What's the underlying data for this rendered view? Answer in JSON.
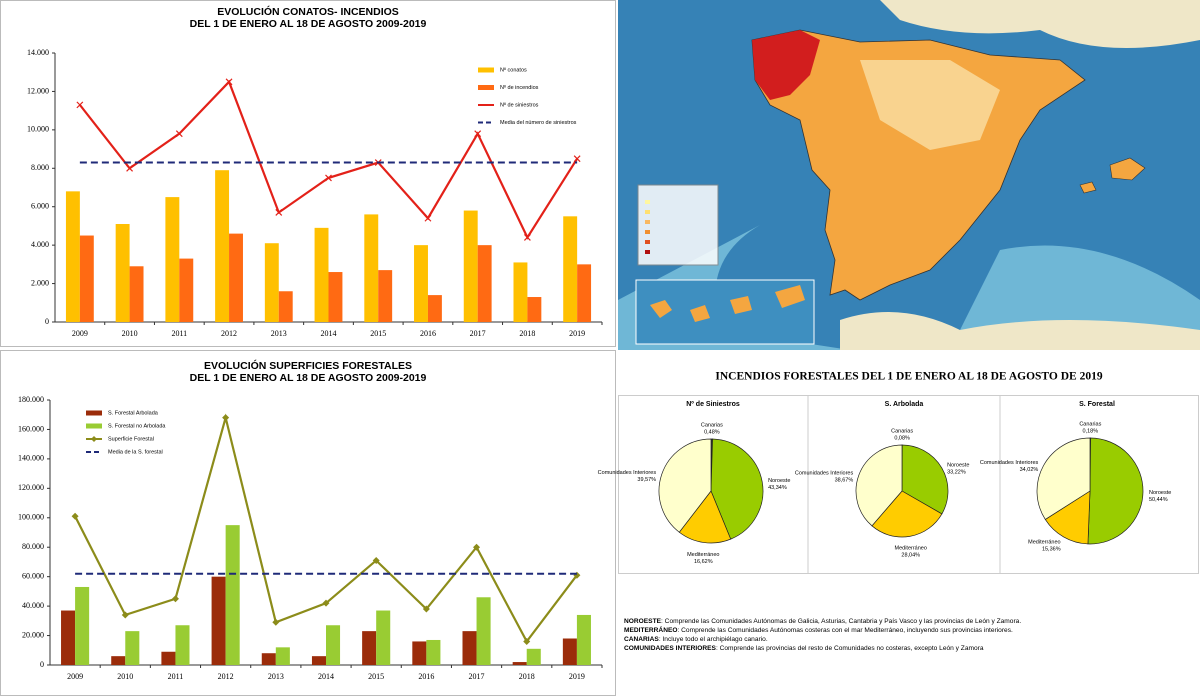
{
  "chart_data": [
    {
      "type": "combo",
      "title": "EVOLUCIÓN CONATOS- INCENDIOS",
      "subtitle": "DEL 1 DE ENERO AL 18 DE AGOSTO 2009-2019",
      "categories": [
        "2009",
        "2010",
        "2011",
        "2012",
        "2013",
        "2014",
        "2015",
        "2016",
        "2017",
        "2018",
        "2019"
      ],
      "series": [
        {
          "name": "Nº conatos",
          "kind": "bar",
          "color": "#FFC000",
          "values": [
            6800,
            5100,
            6500,
            7900,
            4100,
            4900,
            5600,
            4000,
            5800,
            3100,
            5500
          ]
        },
        {
          "name": "Nº de incendios",
          "kind": "bar",
          "color": "#FF6A13",
          "values": [
            4500,
            2900,
            3300,
            4600,
            1600,
            2600,
            2700,
            1400,
            4000,
            1300,
            3000
          ]
        },
        {
          "name": "Nº de siniestros",
          "kind": "line",
          "marker": "cross",
          "color": "#E32119",
          "values": [
            11300,
            8000,
            9800,
            12500,
            5700,
            7500,
            8300,
            5400,
            9800,
            4400,
            8500
          ]
        },
        {
          "name": "Media del número de siniestros",
          "kind": "line",
          "dash": true,
          "color": "#1F2A78",
          "values": [
            8300,
            8300,
            8300,
            8300,
            8300,
            8300,
            8300,
            8300,
            8300,
            8300,
            8300
          ]
        }
      ],
      "ylim": [
        0,
        14000
      ],
      "yticks": [
        0,
        {
          "value": 2000,
          "label": "2.000"
        },
        {
          "value": 4000,
          "label": "4.000"
        },
        {
          "value": 6000,
          "label": "6.000"
        },
        {
          "value": 8000,
          "label": "8.000"
        },
        {
          "value": 10000,
          "label": "10.000"
        },
        {
          "value": 12000,
          "label": "12.000"
        },
        {
          "value": 14000,
          "label": "14.000"
        }
      ],
      "grid": false,
      "legend": "upper right"
    },
    {
      "type": "combo",
      "title": "EVOLUCIÓN SUPERFICIES FORESTALES",
      "subtitle": "DEL 1 DE ENERO AL 18 DE AGOSTO 2009-2019",
      "categories": [
        "2009",
        "2010",
        "2011",
        "2012",
        "2013",
        "2014",
        "2015",
        "2016",
        "2017",
        "2018",
        "2019"
      ],
      "series": [
        {
          "name": "S. Forestal Arbolada",
          "kind": "bar",
          "color": "#9B2C0A",
          "values": [
            37000,
            6000,
            9000,
            60000,
            8000,
            6000,
            23000,
            16000,
            23000,
            2000,
            18000
          ]
        },
        {
          "name": "S. Forestal no Arbolada",
          "kind": "bar",
          "color": "#99CC33",
          "values": [
            53000,
            23000,
            27000,
            95000,
            12000,
            27000,
            37000,
            17000,
            46000,
            11000,
            34000
          ]
        },
        {
          "name": "Superficie Forestal",
          "kind": "line",
          "marker": "diamond",
          "color": "#8C8C1A",
          "values": [
            101000,
            34000,
            45000,
            168000,
            29000,
            42000,
            71000,
            38000,
            80000,
            16000,
            61000
          ]
        },
        {
          "name": "Media de la S. forestal",
          "kind": "line",
          "dash": true,
          "color": "#1F2A78",
          "values": [
            62000,
            62000,
            62000,
            62000,
            62000,
            62000,
            62000,
            62000,
            62000,
            62000,
            62000
          ]
        }
      ],
      "ylim": [
        0,
        180000
      ],
      "yticks": [
        0,
        {
          "value": 20000,
          "label": "20.000"
        },
        {
          "value": 40000,
          "label": "40.000"
        },
        {
          "value": 60000,
          "label": "60.000"
        },
        {
          "value": 80000,
          "label": "80.000"
        },
        {
          "value": 100000,
          "label": "100.000"
        },
        {
          "value": 120000,
          "label": "120.000"
        },
        {
          "value": 140000,
          "label": "140.000"
        },
        {
          "value": 160000,
          "label": "160.000"
        },
        {
          "value": 180000,
          "label": "180.000"
        }
      ],
      "grid": false,
      "legend": "upper left"
    },
    {
      "type": "pie",
      "title": "Nº de Siniestros",
      "categories": [
        "Canarias",
        "Noroeste",
        "Mediterráneo",
        "Comunidades Interiores"
      ],
      "colors": [
        "#333333",
        "#99CC00",
        "#FFCC00",
        "#FFFFCC"
      ],
      "values": [
        0.48,
        43.34,
        16.62,
        39.57
      ],
      "value_labels": [
        "0,48%",
        "43,34%",
        "16,62%",
        "39,57%"
      ]
    },
    {
      "type": "pie",
      "title": "S. Arbolada",
      "categories": [
        "Canarias",
        "Noroeste",
        "Mediterráneo",
        "Comunidades Interiores"
      ],
      "colors": [
        "#333333",
        "#99CC00",
        "#FFCC00",
        "#FFFFCC"
      ],
      "values": [
        0.08,
        33.22,
        28.04,
        38.67
      ],
      "value_labels": [
        "0,08%",
        "33,22%",
        "28,04%",
        "38,67%"
      ]
    },
    {
      "type": "pie",
      "title": "S. Forestal",
      "categories": [
        "Canarias",
        "Noroeste",
        "Mediterráneo",
        "Comunidades Interiores"
      ],
      "colors": [
        "#333333",
        "#99CC00",
        "#FFCC00",
        "#FFFFCC"
      ],
      "values": [
        0.18,
        50.44,
        15.36,
        34.02
      ],
      "value_labels": [
        "0,18%",
        "50,44%",
        "15,36%",
        "34,02%"
      ]
    }
  ],
  "pie_panel_title": "INCENDIOS FORESTALES DEL 1 DE ENERO AL 18 DE AGOSTO DE 2019",
  "notes": [
    {
      "term": "NOROESTE",
      "text": ": Comprende las Comunidades Autónomas de Galicia, Asturias, Cantabria y País Vasco y las provincias de León y Zamora."
    },
    {
      "term": "MEDITERRÁNEO",
      "text": ": Comprende las Comunidades Autónomas costeras con el mar Mediterráneo, incluyendo sus provincias interiores."
    },
    {
      "term": "CANARIAS",
      "text": ": Incluye todo el archipiélago canario."
    },
    {
      "term": "COMUNIDADES INTERIORES",
      "text": ": Comprende las provincias del resto de Comunidades no costeras, excepto León y Zamora"
    }
  ]
}
